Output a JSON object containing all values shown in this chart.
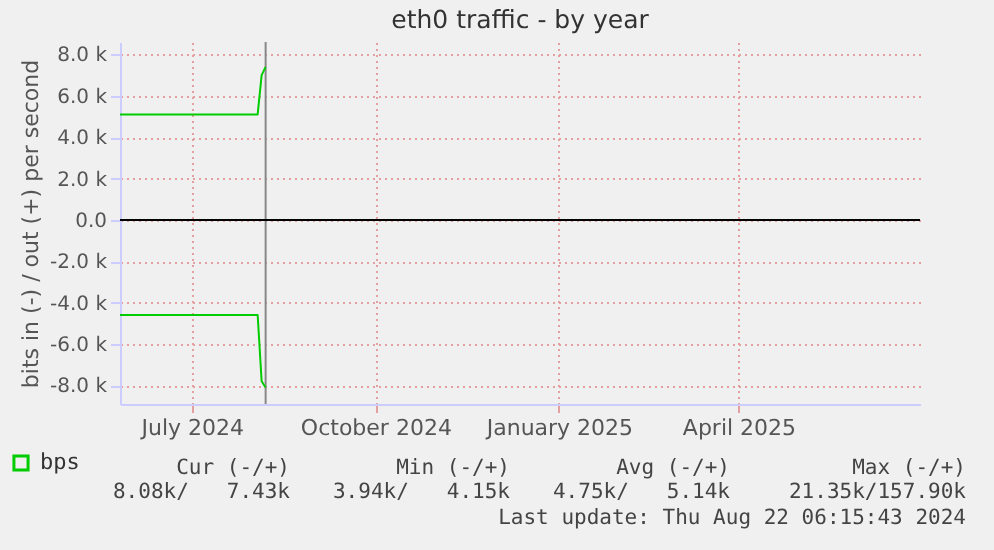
{
  "chart_data": {
    "type": "line",
    "title": "eth0 traffic - by year",
    "ylabel": "bits in (-) / out (+) per second",
    "x": [
      "2024-06-10",
      "2024-07-01",
      "2024-08-01",
      "2024-08-18",
      "2024-08-20",
      "2024-08-22"
    ],
    "series": [
      {
        "name": "bps",
        "color": "#00cc00",
        "values": [
          5100,
          5100,
          5100,
          5100,
          7000,
          7400
        ]
      },
      {
        "color": "#00cc00",
        "values": [
          -4600,
          -4600,
          -4600,
          -4600,
          -7800,
          -8100
        ]
      }
    ],
    "xlim": [
      "2024-06-10",
      "2025-07-16"
    ],
    "xticks": [
      {
        "value": "2024-07-16",
        "label": "July 2024"
      },
      {
        "value": "2024-10-16",
        "label": "October 2024"
      },
      {
        "value": "2025-01-16",
        "label": "January 2025"
      },
      {
        "value": "2025-04-16",
        "label": "April 2025"
      }
    ],
    "ylim": [
      -8900,
      8600
    ],
    "yticks": [
      {
        "value": -8000,
        "label": "-8.0 k"
      },
      {
        "value": -6000,
        "label": "-6.0 k"
      },
      {
        "value": -4000,
        "label": "-4.0 k"
      },
      {
        "value": -2000,
        "label": "-2.0 k"
      },
      {
        "value": 0,
        "label": "0.0"
      },
      {
        "value": 2000,
        "label": "2.0 k"
      },
      {
        "value": 4000,
        "label": "4.0 k"
      },
      {
        "value": 6000,
        "label": "6.0 k"
      },
      {
        "value": 8000,
        "label": "8.0 k"
      }
    ],
    "grid": true,
    "legend": "bottom left",
    "ref_lines": [
      {
        "axis": "y",
        "value": 0,
        "color": "#000000"
      },
      {
        "axis": "x",
        "value": "2024-08-22",
        "color": "#888888"
      }
    ],
    "annotations": [
      "Cur (-/+)",
      "Min (-/+)",
      "Avg (-/+)",
      "Max (-/+)",
      "8.08k/   7.43k",
      "3.94k/   4.15k",
      "4.75k/   5.14k",
      "21.35k/157.90k",
      "Last update: Thu Aug 22 06:15:43 2024"
    ]
  }
}
